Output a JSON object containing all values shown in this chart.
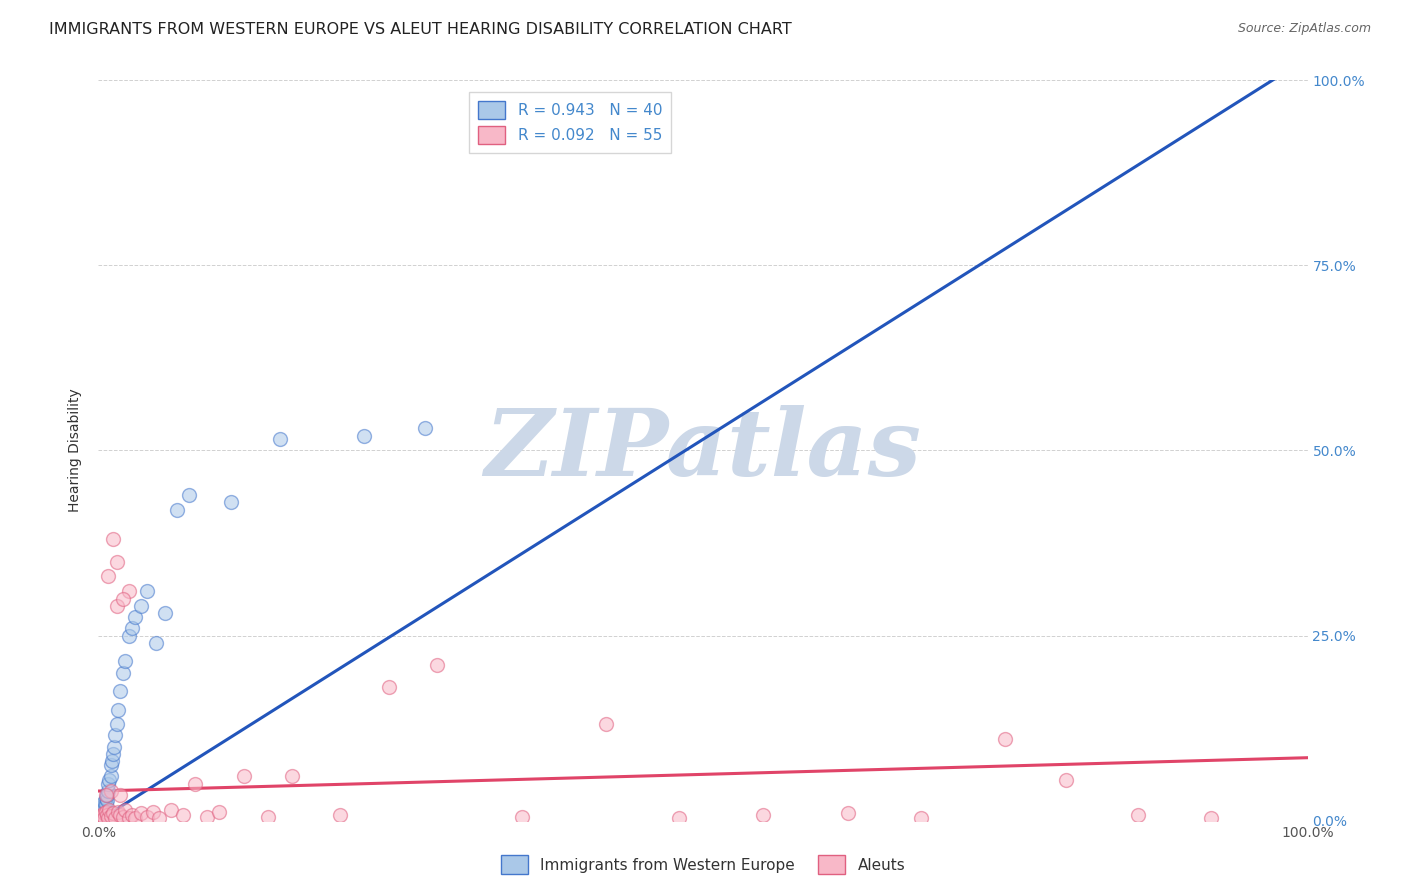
{
  "title": "IMMIGRANTS FROM WESTERN EUROPE VS ALEUT HEARING DISABILITY CORRELATION CHART",
  "source": "Source: ZipAtlas.com",
  "ylabel": "Hearing Disability",
  "xmin": 0.0,
  "xmax": 1.0,
  "ymin": 0.0,
  "ymax": 1.0,
  "legend_entries": [
    {
      "label": "Immigrants from Western Europe",
      "R": "0.943",
      "N": "40"
    },
    {
      "label": "Aleuts",
      "R": "0.092",
      "N": "55"
    }
  ],
  "blue_scatter_x": [
    0.001,
    0.002,
    0.002,
    0.003,
    0.003,
    0.004,
    0.004,
    0.005,
    0.005,
    0.006,
    0.006,
    0.007,
    0.007,
    0.008,
    0.008,
    0.009,
    0.01,
    0.01,
    0.011,
    0.012,
    0.013,
    0.014,
    0.015,
    0.016,
    0.018,
    0.02,
    0.022,
    0.025,
    0.028,
    0.03,
    0.035,
    0.04,
    0.048,
    0.055,
    0.065,
    0.075,
    0.11,
    0.15,
    0.22,
    0.27
  ],
  "blue_scatter_y": [
    0.003,
    0.005,
    0.008,
    0.01,
    0.015,
    0.012,
    0.02,
    0.018,
    0.025,
    0.022,
    0.03,
    0.028,
    0.035,
    0.04,
    0.05,
    0.055,
    0.06,
    0.075,
    0.08,
    0.09,
    0.1,
    0.115,
    0.13,
    0.15,
    0.175,
    0.2,
    0.215,
    0.25,
    0.26,
    0.275,
    0.29,
    0.31,
    0.24,
    0.28,
    0.42,
    0.44,
    0.43,
    0.515,
    0.52,
    0.53
  ],
  "pink_scatter_x": [
    0.001,
    0.001,
    0.002,
    0.003,
    0.004,
    0.005,
    0.005,
    0.006,
    0.007,
    0.008,
    0.009,
    0.01,
    0.012,
    0.014,
    0.016,
    0.018,
    0.02,
    0.022,
    0.025,
    0.028,
    0.03,
    0.035,
    0.04,
    0.045,
    0.05,
    0.06,
    0.07,
    0.08,
    0.09,
    0.1,
    0.12,
    0.14,
    0.16,
    0.2,
    0.24,
    0.28,
    0.35,
    0.42,
    0.48,
    0.55,
    0.62,
    0.68,
    0.75,
    0.8,
    0.86,
    0.92,
    0.015,
    0.025,
    0.015,
    0.02,
    0.008,
    0.01,
    0.012,
    0.018,
    0.006
  ],
  "pink_scatter_y": [
    0.002,
    0.005,
    0.003,
    0.008,
    0.006,
    0.01,
    0.003,
    0.012,
    0.008,
    0.004,
    0.015,
    0.006,
    0.01,
    0.003,
    0.012,
    0.008,
    0.005,
    0.015,
    0.003,
    0.008,
    0.004,
    0.01,
    0.005,
    0.012,
    0.003,
    0.015,
    0.008,
    0.05,
    0.005,
    0.012,
    0.06,
    0.005,
    0.06,
    0.008,
    0.18,
    0.21,
    0.005,
    0.13,
    0.003,
    0.008,
    0.01,
    0.003,
    0.11,
    0.055,
    0.008,
    0.003,
    0.35,
    0.31,
    0.29,
    0.3,
    0.33,
    0.04,
    0.38,
    0.035,
    0.035
  ],
  "blue_line_x": [
    0.0,
    1.0
  ],
  "blue_line_y": [
    0.0,
    1.03
  ],
  "pink_line_x": [
    0.0,
    1.0
  ],
  "pink_line_y": [
    0.04,
    0.085
  ],
  "scatter_size": 100,
  "scatter_alpha": 0.55,
  "scatter_linewidth": 1.0,
  "blue_face_color": "#aac8e8",
  "blue_edge_color": "#4477cc",
  "pink_face_color": "#f8b8c8",
  "pink_edge_color": "#e06080",
  "blue_line_color": "#2255bb",
  "pink_line_color": "#e04468",
  "grid_color": "#cccccc",
  "background_color": "#ffffff",
  "watermark_text": "ZIPatlas",
  "watermark_color": "#ccd8e8",
  "title_fontsize": 11.5,
  "axis_label_fontsize": 10,
  "tick_fontsize": 10,
  "legend_fontsize": 11,
  "right_tick_color": "#4488cc"
}
